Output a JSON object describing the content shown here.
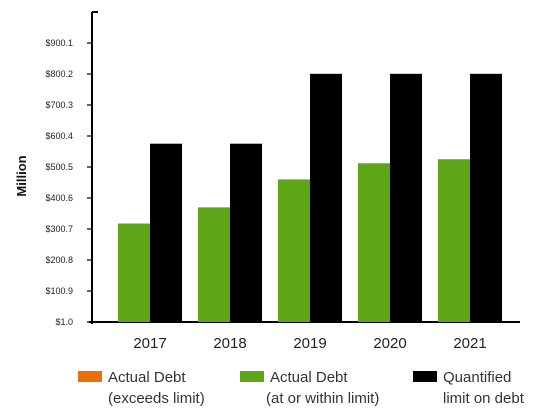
{
  "chart_data": {
    "type": "bar",
    "ylabel": "Million",
    "categories": [
      "2017",
      "2018",
      "2019",
      "2020",
      "2021"
    ],
    "y_ticks": [
      "$1.0",
      "$100.9",
      "$200.8",
      "$300.7",
      "$400.6",
      "$500.5",
      "$600.4",
      "$700.3",
      "$800.2",
      "$900.1"
    ],
    "ylim": [
      1.0,
      999.0
    ],
    "series": [
      {
        "name": "Actual Debt (exceeds limit)",
        "color": "#e8700a",
        "values": [
          0,
          0,
          0,
          0,
          0
        ]
      },
      {
        "name": "Actual Debt (at or within limit)",
        "color": "#5ea617",
        "values": [
          318,
          370,
          460,
          512,
          525
        ]
      },
      {
        "name": "Quantified limit on debt",
        "color": "#000000",
        "values": [
          575,
          575,
          800,
          800,
          800
        ]
      }
    ],
    "legend": [
      {
        "line1": "Actual Debt",
        "line2": "(exceeds limit)",
        "color": "#e8700a"
      },
      {
        "line1": "Actual Debt",
        "line2": "(at or within limit)",
        "color": "#5ea617"
      },
      {
        "line1": "Quantified",
        "line2": "limit on debt",
        "color": "#000000"
      }
    ],
    "legend_position": "bottom",
    "grid": false
  }
}
